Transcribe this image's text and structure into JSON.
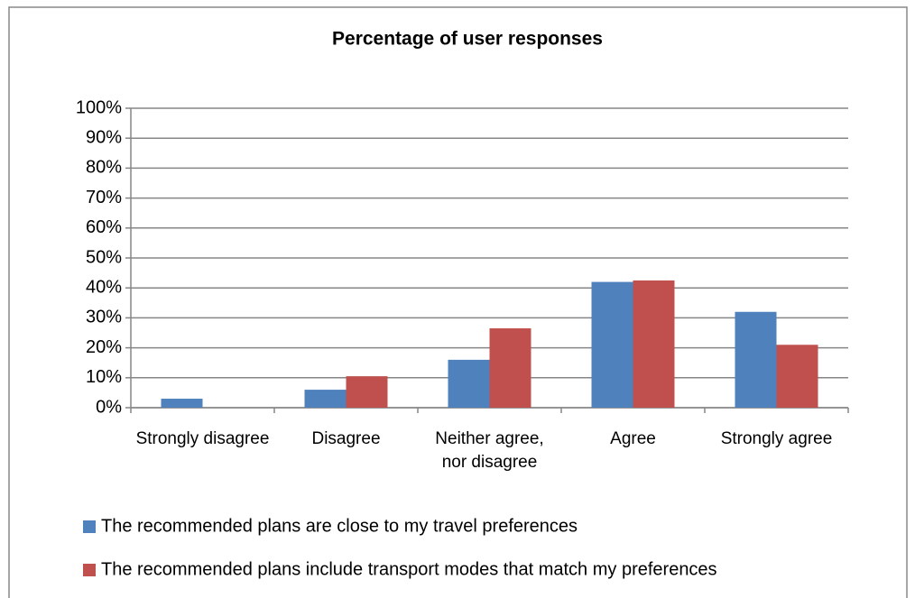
{
  "chart_data": {
    "type": "bar",
    "title": "Percentage of user responses",
    "categories": [
      "Strongly disagree",
      "Disagree",
      "Neither agree, nor disagree",
      "Agree",
      "Strongly agree"
    ],
    "series": [
      {
        "name": "The recommended plans are close to my travel preferences",
        "color": "#4f81bd",
        "values": [
          3,
          6,
          16,
          42,
          32
        ]
      },
      {
        "name": "The recommended plans include transport modes that match my preferences",
        "color": "#c0504d",
        "values": [
          0,
          10.5,
          26.5,
          42.5,
          21
        ]
      }
    ],
    "ylim": [
      0,
      100
    ],
    "yticks": [
      {
        "value": 0,
        "label": "0%"
      },
      {
        "value": 10,
        "label": "10%"
      },
      {
        "value": 20,
        "label": "20%"
      },
      {
        "value": 30,
        "label": "30%"
      },
      {
        "value": 40,
        "label": "40%"
      },
      {
        "value": 50,
        "label": "50%"
      },
      {
        "value": 60,
        "label": "60%"
      },
      {
        "value": 70,
        "label": "70%"
      },
      {
        "value": 80,
        "label": "80%"
      },
      {
        "value": 90,
        "label": "90%"
      },
      {
        "value": 100,
        "label": "100%"
      }
    ],
    "grid": true,
    "legend": "bottom"
  }
}
